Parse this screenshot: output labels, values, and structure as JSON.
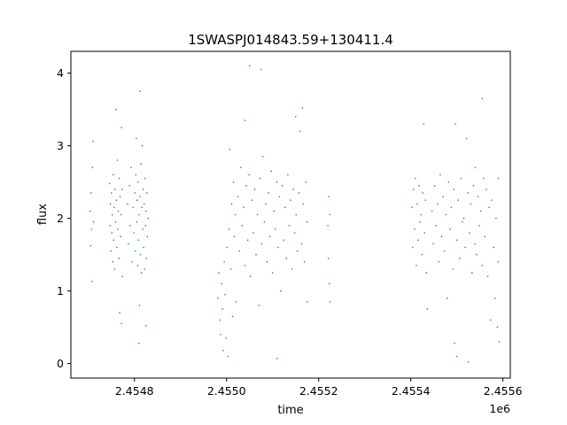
{
  "chart_data": {
    "type": "scatter",
    "title": "1SWASPJ014843.59+130411.4",
    "xlabel": "time",
    "ylabel": "flux",
    "x_offset_label": "1e6",
    "xlim": [
      2454662,
      2455616
    ],
    "ylim": [
      -0.2,
      4.3
    ],
    "x_ticks": [
      2454800,
      2455000,
      2455200,
      2455400,
      2455600
    ],
    "x_tick_labels": [
      "2.4548",
      "2.4550",
      "2.4552",
      "2.4554",
      "2.4556"
    ],
    "y_ticks": [
      0,
      1,
      2,
      3,
      4
    ],
    "y_tick_labels": [
      "0",
      "1",
      "2",
      "3",
      "4"
    ],
    "grid": false,
    "legend": "none",
    "point_color": "#1f77b4",
    "series": [
      {
        "points": [
          [
            2454704,
            2.1
          ],
          [
            2454705,
            1.62
          ],
          [
            2454706,
            2.35
          ],
          [
            2454707,
            1.85
          ],
          [
            2454708,
            1.13
          ],
          [
            2454709,
            2.7
          ],
          [
            2454710,
            3.06
          ],
          [
            2454711,
            1.95
          ],
          [
            2454746,
            2.48
          ],
          [
            2454747,
            1.9
          ],
          [
            2454748,
            2.2
          ],
          [
            2454749,
            1.55
          ],
          [
            2454750,
            2.35
          ],
          [
            2454751,
            1.8
          ],
          [
            2454752,
            2.05
          ],
          [
            2454753,
            1.4
          ],
          [
            2454754,
            2.6
          ],
          [
            2454755,
            1.7
          ],
          [
            2454756,
            2.15
          ],
          [
            2454757,
            1.3
          ],
          [
            2454758,
            2.4
          ],
          [
            2454759,
            1.95
          ],
          [
            2454760,
            3.5
          ],
          [
            2454761,
            2.25
          ],
          [
            2454762,
            1.6
          ],
          [
            2454763,
            2.8
          ],
          [
            2454764,
            1.85
          ],
          [
            2454765,
            2.1
          ],
          [
            2454766,
            1.45
          ],
          [
            2454767,
            2.55
          ],
          [
            2454768,
            0.7
          ],
          [
            2454769,
            2.3
          ],
          [
            2454770,
            1.75
          ],
          [
            2454771,
            2.05
          ],
          [
            2454772,
            0.55
          ],
          [
            2454773,
            2.4
          ],
          [
            2454774,
            1.2
          ],
          [
            2454785,
            2.2
          ],
          [
            2454787,
            1.65
          ],
          [
            2454789,
            2.45
          ],
          [
            2454791,
            1.9
          ],
          [
            2454793,
            2.7
          ],
          [
            2454795,
            1.4
          ],
          [
            2454797,
            2.15
          ],
          [
            2454799,
            1.8
          ],
          [
            2454801,
            2.35
          ],
          [
            2454802,
            1.55
          ],
          [
            2454803,
            2.6
          ],
          [
            2454804,
            3.1
          ],
          [
            2454805,
            1.95
          ],
          [
            2454806,
            2.25
          ],
          [
            2454807,
            1.35
          ],
          [
            2454808,
            2.5
          ],
          [
            2454809,
            1.7
          ],
          [
            2454810,
            2.05
          ],
          [
            2454811,
            0.8
          ],
          [
            2454812,
            2.3
          ],
          [
            2454813,
            1.5
          ],
          [
            2454814,
            2.75
          ],
          [
            2454815,
            1.25
          ],
          [
            2454816,
            2.15
          ],
          [
            2454817,
            3.0
          ],
          [
            2454818,
            1.85
          ],
          [
            2454819,
            2.4
          ],
          [
            2454820,
            1.6
          ],
          [
            2454821,
            2.2
          ],
          [
            2454822,
            1.3
          ],
          [
            2454823,
            2.55
          ],
          [
            2454824,
            1.9
          ],
          [
            2454825,
            2.1
          ],
          [
            2454826,
            1.45
          ],
          [
            2454827,
            2.35
          ],
          [
            2454828,
            1.75
          ],
          [
            2454830,
            2.0
          ],
          [
            2454810,
            0.28
          ],
          [
            2454812,
            3.75
          ],
          [
            2454772,
            3.25
          ],
          [
            2454825,
            0.52
          ],
          [
            2454981,
            0.9
          ],
          [
            2454983,
            1.25
          ],
          [
            2454985,
            0.6
          ],
          [
            2454987,
            0.4
          ],
          [
            2454989,
            1.1
          ],
          [
            2454991,
            0.75
          ],
          [
            2454993,
            0.18
          ],
          [
            2454995,
            1.4
          ],
          [
            2454997,
            0.95
          ],
          [
            2454999,
            0.35
          ],
          [
            2455001,
            1.6
          ],
          [
            2455003,
            0.1
          ],
          [
            2455005,
            1.85
          ],
          [
            2455007,
            2.95
          ],
          [
            2455009,
            1.3
          ],
          [
            2455011,
            2.2
          ],
          [
            2455013,
            0.65
          ],
          [
            2455015,
            2.5
          ],
          [
            2455017,
            1.75
          ],
          [
            2455019,
            2.05
          ],
          [
            2455021,
            0.85
          ],
          [
            2455025,
            2.3
          ],
          [
            2455028,
            1.55
          ],
          [
            2455031,
            2.7
          ],
          [
            2455034,
            1.9
          ],
          [
            2455037,
            2.15
          ],
          [
            2455040,
            1.35
          ],
          [
            2455043,
            2.45
          ],
          [
            2455046,
            1.7
          ],
          [
            2455049,
            2.6
          ],
          [
            2455052,
            1.2
          ],
          [
            2455055,
            2.25
          ],
          [
            2455058,
            1.8
          ],
          [
            2455061,
            2.4
          ],
          [
            2455064,
            1.5
          ],
          [
            2455067,
            2.05
          ],
          [
            2455070,
            0.8
          ],
          [
            2455073,
            2.55
          ],
          [
            2455076,
            1.65
          ],
          [
            2455079,
            2.85
          ],
          [
            2455082,
            1.95
          ],
          [
            2455085,
            2.2
          ],
          [
            2455088,
            1.4
          ],
          [
            2455091,
            2.35
          ],
          [
            2455094,
            1.75
          ],
          [
            2455097,
            2.65
          ],
          [
            2455100,
            1.25
          ],
          [
            2455103,
            2.1
          ],
          [
            2455106,
            1.85
          ],
          [
            2455109,
            2.5
          ],
          [
            2455112,
            1.6
          ],
          [
            2455115,
            2.3
          ],
          [
            2455118,
            1.0
          ],
          [
            2455121,
            2.45
          ],
          [
            2455124,
            1.7
          ],
          [
            2455127,
            2.15
          ],
          [
            2455130,
            1.45
          ],
          [
            2455133,
            2.6
          ],
          [
            2455136,
            1.9
          ],
          [
            2455139,
            2.25
          ],
          [
            2455142,
            1.3
          ],
          [
            2455145,
            2.4
          ],
          [
            2455148,
            1.8
          ],
          [
            2455151,
            2.05
          ],
          [
            2455154,
            1.55
          ],
          [
            2455157,
            2.35
          ],
          [
            2455160,
            3.2
          ],
          [
            2455163,
            1.65
          ],
          [
            2455166,
            2.2
          ],
          [
            2455169,
            1.4
          ],
          [
            2455172,
            2.5
          ],
          [
            2455175,
            1.95
          ],
          [
            2455040,
            3.35
          ],
          [
            2455050,
            4.1
          ],
          [
            2455075,
            4.05
          ],
          [
            2455110,
            0.07
          ],
          [
            2455150,
            3.4
          ],
          [
            2455165,
            3.52
          ],
          [
            2455175,
            0.85
          ],
          [
            2455220,
            1.9
          ],
          [
            2455221,
            1.45
          ],
          [
            2455222,
            2.3
          ],
          [
            2455223,
            1.1
          ],
          [
            2455224,
            2.05
          ],
          [
            2455225,
            0.85
          ],
          [
            2455402,
            2.15
          ],
          [
            2455404,
            1.6
          ],
          [
            2455406,
            2.4
          ],
          [
            2455408,
            1.85
          ],
          [
            2455410,
            2.55
          ],
          [
            2455412,
            1.35
          ],
          [
            2455414,
            2.2
          ],
          [
            2455416,
            1.7
          ],
          [
            2455418,
            2.45
          ],
          [
            2455420,
            1.95
          ],
          [
            2455422,
            2.05
          ],
          [
            2455424,
            1.5
          ],
          [
            2455426,
            2.35
          ],
          [
            2455428,
            3.3
          ],
          [
            2455430,
            1.8
          ],
          [
            2455432,
            2.25
          ],
          [
            2455434,
            1.25
          ],
          [
            2455436,
            0.75
          ],
          [
            2455446,
            2.1
          ],
          [
            2455449,
            1.65
          ],
          [
            2455452,
            2.45
          ],
          [
            2455455,
            1.9
          ],
          [
            2455458,
            2.2
          ],
          [
            2455461,
            1.4
          ],
          [
            2455464,
            2.6
          ],
          [
            2455467,
            1.75
          ],
          [
            2455470,
            2.3
          ],
          [
            2455473,
            1.55
          ],
          [
            2455476,
            2.05
          ],
          [
            2455479,
            0.9
          ],
          [
            2455482,
            2.5
          ],
          [
            2455485,
            1.85
          ],
          [
            2455488,
            2.15
          ],
          [
            2455491,
            1.3
          ],
          [
            2455494,
            2.4
          ],
          [
            2455497,
            3.3
          ],
          [
            2455500,
            1.7
          ],
          [
            2455503,
            2.25
          ],
          [
            2455506,
            1.45
          ],
          [
            2455509,
            2.55
          ],
          [
            2455512,
            1.95
          ],
          [
            2455515,
            2.0
          ],
          [
            2455518,
            1.6
          ],
          [
            2455521,
            3.1
          ],
          [
            2455524,
            2.35
          ],
          [
            2455527,
            1.8
          ],
          [
            2455530,
            2.2
          ],
          [
            2455533,
            1.25
          ],
          [
            2455536,
            2.45
          ],
          [
            2455539,
            1.65
          ],
          [
            2455540,
            2.7
          ],
          [
            2455543,
            1.5
          ],
          [
            2455546,
            2.3
          ],
          [
            2455549,
            1.9
          ],
          [
            2455552,
            2.1
          ],
          [
            2455555,
            1.35
          ],
          [
            2455558,
            2.55
          ],
          [
            2455561,
            1.75
          ],
          [
            2455564,
            2.4
          ],
          [
            2455567,
            1.2
          ],
          [
            2455570,
            2.15
          ],
          [
            2455573,
            0.6
          ],
          [
            2455576,
            2.25
          ],
          [
            2455580,
            1.6
          ],
          [
            2455583,
            0.9
          ],
          [
            2455585,
            2.0
          ],
          [
            2455588,
            0.5
          ],
          [
            2455590,
            1.4
          ],
          [
            2455495,
            0.28
          ],
          [
            2455500,
            0.1
          ],
          [
            2455525,
            0.02
          ],
          [
            2455555,
            3.65
          ],
          [
            2455590,
            2.55
          ],
          [
            2455592,
            0.3
          ]
        ]
      }
    ]
  }
}
